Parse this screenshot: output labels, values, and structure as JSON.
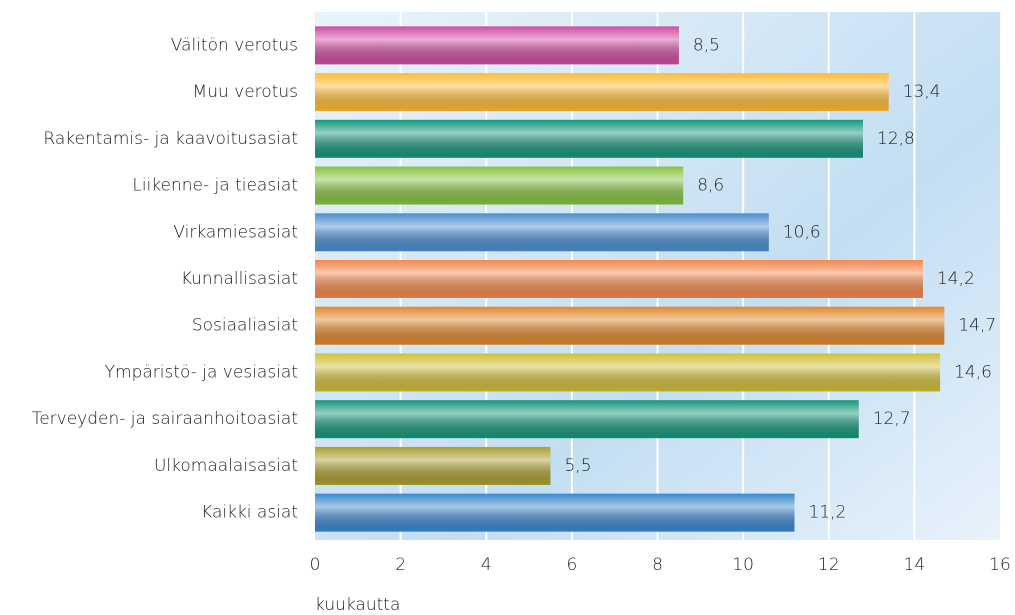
{
  "chart_data": {
    "type": "hbar",
    "categories": [
      "Välitön verotus",
      "Muu verotus",
      "Rakentamis- ja kaavoitusasiat",
      "Liikenne- ja tieasiat",
      "Virkamiesasiat",
      "Kunnallisasiat",
      "Sosiaaliasiat",
      "Ympäristö- ja vesiasiat",
      "Terveyden- ja sairaanhoitoasiat",
      "Ulkomaalaisasiat",
      "Kaikki asiat"
    ],
    "values": [
      8.5,
      13.4,
      12.8,
      8.6,
      10.6,
      14.2,
      14.7,
      14.6,
      12.7,
      5.5,
      11.2
    ],
    "value_labels": [
      "8,5",
      "13,4",
      "12,8",
      "8,6",
      "10,6",
      "14,2",
      "14,7",
      "14,6",
      "12,7",
      "5,5",
      "11,2"
    ],
    "colors": [
      "#d04ea4",
      "#ffbb33",
      "#15977c",
      "#86c441",
      "#4b8fd2",
      "#f5874c",
      "#e0892c",
      "#d2bf38",
      "#15977c",
      "#ad9f2e",
      "#3a88cf"
    ],
    "x_label": "kuukautta",
    "xlim": [
      0,
      16
    ],
    "xticks": [
      0,
      2,
      4,
      6,
      8,
      10,
      12,
      14,
      16
    ],
    "grid": true
  }
}
